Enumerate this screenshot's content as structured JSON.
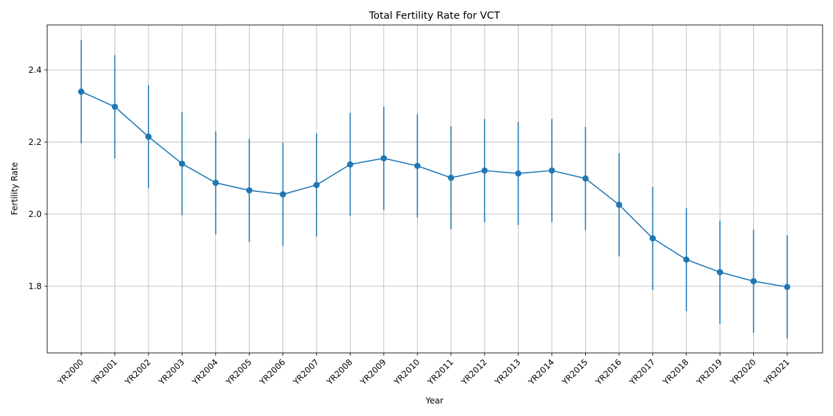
{
  "chart_data": {
    "type": "line",
    "title": "Total Fertility Rate for VCT",
    "xlabel": "Year",
    "ylabel": "Fertility Rate",
    "categories": [
      "YR2000",
      "YR2001",
      "YR2002",
      "YR2003",
      "YR2004",
      "YR2005",
      "YR2006",
      "YR2007",
      "YR2008",
      "YR2009",
      "YR2010",
      "YR2011",
      "YR2012",
      "YR2013",
      "YR2014",
      "YR2015",
      "YR2016",
      "YR2017",
      "YR2018",
      "YR2019",
      "YR2020",
      "YR2021"
    ],
    "series": [
      {
        "values": [
          2.34,
          2.298,
          2.215,
          2.14,
          2.087,
          2.066,
          2.055,
          2.081,
          2.138,
          2.155,
          2.134,
          2.101,
          2.121,
          2.113,
          2.121,
          2.099,
          2.026,
          1.933,
          1.874,
          1.839,
          1.814,
          1.798
        ],
        "error": 0.143,
        "color": "#1f77b4"
      }
    ],
    "ylim": [
      1.615,
      2.525
    ],
    "yticks": [
      1.8,
      2.0,
      2.2,
      2.4
    ],
    "ytick_labels": [
      "1.8",
      "2.0",
      "2.2",
      "2.4"
    ],
    "grid": true,
    "legend": "none"
  }
}
